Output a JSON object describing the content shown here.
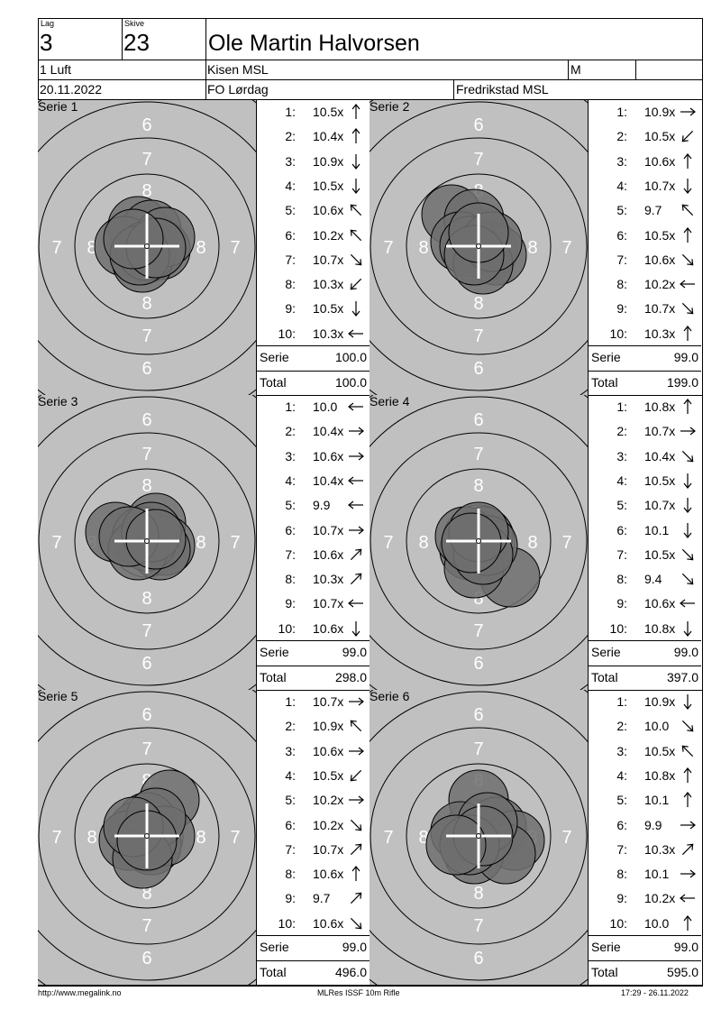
{
  "header": {
    "lag_label": "Lag",
    "lag_value": "3",
    "skive_label": "Skive",
    "skive_value": "23",
    "name": "Ole Martin Halvorsen",
    "class": "1 Luft",
    "club": "Kisen MSL",
    "gender": "M",
    "extra": "",
    "date": "20.11.2022",
    "competition": "FO Lørdag",
    "organizer": "Fredrikstad MSL"
  },
  "series": [
    {
      "label": "Serie 1",
      "shots": [
        {
          "n": "1:",
          "v": "10.5x",
          "dir": "up"
        },
        {
          "n": "2:",
          "v": "10.4x",
          "dir": "up"
        },
        {
          "n": "3:",
          "v": "10.9x",
          "dir": "down"
        },
        {
          "n": "4:",
          "v": "10.5x",
          "dir": "down"
        },
        {
          "n": "5:",
          "v": "10.6x",
          "dir": "up-left"
        },
        {
          "n": "6:",
          "v": "10.2x",
          "dir": "up-left"
        },
        {
          "n": "7:",
          "v": "10.7x",
          "dir": "down-right"
        },
        {
          "n": "8:",
          "v": "10.3x",
          "dir": "down-left"
        },
        {
          "n": "9:",
          "v": "10.5x",
          "dir": "down"
        },
        {
          "n": "10:",
          "v": "10.3x",
          "dir": "left"
        }
      ],
      "serie_label": "Serie",
      "serie_value": "100.0",
      "total_label": "Total",
      "total_value": "100.0"
    },
    {
      "label": "Serie 2",
      "shots": [
        {
          "n": "1:",
          "v": "10.9x",
          "dir": "right"
        },
        {
          "n": "2:",
          "v": "10.5x",
          "dir": "down-left"
        },
        {
          "n": "3:",
          "v": "10.6x",
          "dir": "up"
        },
        {
          "n": "4:",
          "v": "10.7x",
          "dir": "down"
        },
        {
          "n": "5:",
          "v": "9.7",
          "dir": "up-left"
        },
        {
          "n": "6:",
          "v": "10.5x",
          "dir": "up"
        },
        {
          "n": "7:",
          "v": "10.6x",
          "dir": "down-right"
        },
        {
          "n": "8:",
          "v": "10.2x",
          "dir": "left"
        },
        {
          "n": "9:",
          "v": "10.7x",
          "dir": "down-right"
        },
        {
          "n": "10:",
          "v": "10.3x",
          "dir": "up"
        }
      ],
      "serie_label": "Serie",
      "serie_value": "99.0",
      "total_label": "Total",
      "total_value": "199.0"
    },
    {
      "label": "Serie 3",
      "shots": [
        {
          "n": "1:",
          "v": "10.0",
          "dir": "left"
        },
        {
          "n": "2:",
          "v": "10.4x",
          "dir": "right"
        },
        {
          "n": "3:",
          "v": "10.6x",
          "dir": "right"
        },
        {
          "n": "4:",
          "v": "10.4x",
          "dir": "left"
        },
        {
          "n": "5:",
          "v": "9.9",
          "dir": "left"
        },
        {
          "n": "6:",
          "v": "10.7x",
          "dir": "right"
        },
        {
          "n": "7:",
          "v": "10.6x",
          "dir": "up-right"
        },
        {
          "n": "8:",
          "v": "10.3x",
          "dir": "up-right"
        },
        {
          "n": "9:",
          "v": "10.7x",
          "dir": "left"
        },
        {
          "n": "10:",
          "v": "10.6x",
          "dir": "down"
        }
      ],
      "serie_label": "Serie",
      "serie_value": "99.0",
      "total_label": "Total",
      "total_value": "298.0"
    },
    {
      "label": "Serie 4",
      "shots": [
        {
          "n": "1:",
          "v": "10.8x",
          "dir": "up"
        },
        {
          "n": "2:",
          "v": "10.7x",
          "dir": "right"
        },
        {
          "n": "3:",
          "v": "10.4x",
          "dir": "down-right"
        },
        {
          "n": "4:",
          "v": "10.5x",
          "dir": "down"
        },
        {
          "n": "5:",
          "v": "10.7x",
          "dir": "down"
        },
        {
          "n": "6:",
          "v": "10.1",
          "dir": "down"
        },
        {
          "n": "7:",
          "v": "10.5x",
          "dir": "down-right"
        },
        {
          "n": "8:",
          "v": "9.4",
          "dir": "down-right"
        },
        {
          "n": "9:",
          "v": "10.6x",
          "dir": "left"
        },
        {
          "n": "10:",
          "v": "10.8x",
          "dir": "down"
        }
      ],
      "serie_label": "Serie",
      "serie_value": "99.0",
      "total_label": "Total",
      "total_value": "397.0"
    },
    {
      "label": "Serie 5",
      "shots": [
        {
          "n": "1:",
          "v": "10.7x",
          "dir": "right"
        },
        {
          "n": "2:",
          "v": "10.9x",
          "dir": "up-left"
        },
        {
          "n": "3:",
          "v": "10.6x",
          "dir": "right"
        },
        {
          "n": "4:",
          "v": "10.5x",
          "dir": "down-left"
        },
        {
          "n": "5:",
          "v": "10.2x",
          "dir": "right"
        },
        {
          "n": "6:",
          "v": "10.2x",
          "dir": "down-right"
        },
        {
          "n": "7:",
          "v": "10.7x",
          "dir": "up-right"
        },
        {
          "n": "8:",
          "v": "10.6x",
          "dir": "up"
        },
        {
          "n": "9:",
          "v": "9.7",
          "dir": "up-right"
        },
        {
          "n": "10:",
          "v": "10.6x",
          "dir": "down-right"
        }
      ],
      "serie_label": "Serie",
      "serie_value": "99.0",
      "total_label": "Total",
      "total_value": "496.0"
    },
    {
      "label": "Serie 6",
      "shots": [
        {
          "n": "1:",
          "v": "10.9x",
          "dir": "down"
        },
        {
          "n": "2:",
          "v": "10.0",
          "dir": "down-right"
        },
        {
          "n": "3:",
          "v": "10.5x",
          "dir": "up-left"
        },
        {
          "n": "4:",
          "v": "10.8x",
          "dir": "up"
        },
        {
          "n": "5:",
          "v": "10.1",
          "dir": "up"
        },
        {
          "n": "6:",
          "v": "9.9",
          "dir": "right"
        },
        {
          "n": "7:",
          "v": "10.3x",
          "dir": "up-right"
        },
        {
          "n": "8:",
          "v": "10.1",
          "dir": "right"
        },
        {
          "n": "9:",
          "v": "10.2x",
          "dir": "left"
        },
        {
          "n": "10:",
          "v": "10.0",
          "dir": "up"
        }
      ],
      "serie_label": "Serie",
      "serie_value": "99.0",
      "total_label": "Total",
      "total_value": "595.0"
    }
  ],
  "ring_labels": {
    "r6": "6",
    "r7": "7",
    "r8": "8"
  },
  "footer": {
    "left": "http://www.megalink.no",
    "center": "MLRes ISSF 10m Rifle",
    "right": "17:29 - 26.11.2022"
  },
  "colors": {
    "target_bg": "#c0c0c0",
    "shot_fill": "#6e6e6e",
    "shot_fill_opacity": "0.85",
    "ring_stroke": "#000000",
    "ring_text": "#ffffff",
    "crosshair": "#ffffff"
  }
}
